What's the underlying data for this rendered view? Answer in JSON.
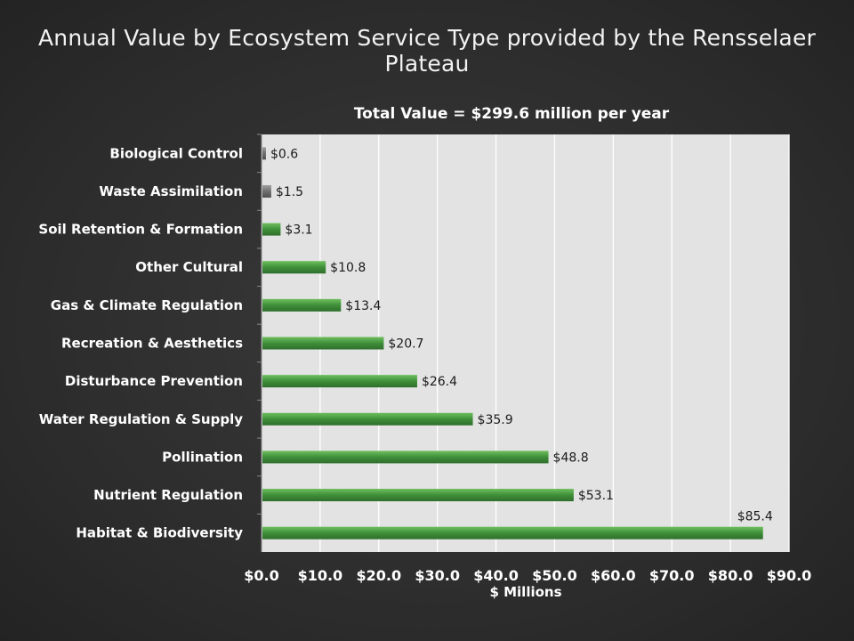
{
  "slide": {
    "title": "Annual Value by Ecosystem Service Type provided by the Rensselaer Plateau"
  },
  "chart_data": {
    "type": "bar",
    "orientation": "horizontal",
    "title": "Total Value = $299.6 million per year",
    "xlabel": "$ Millions",
    "ylabel": "",
    "xlim": [
      0,
      90
    ],
    "x_ticks": [
      "$0.0",
      "$10.0",
      "$20.0",
      "$30.0",
      "$40.0",
      "$50.0",
      "$60.0",
      "$70.0",
      "$80.0",
      "$90.0"
    ],
    "categories": [
      "Biological Control",
      "Waste Assimilation",
      "Soil Retention & Formation",
      "Other Cultural",
      "Gas & Climate Regulation",
      "Recreation & Aesthetics",
      "Disturbance Prevention",
      "Water Regulation & Supply",
      "Pollination",
      "Nutrient Regulation",
      "Habitat & Biodiversity"
    ],
    "values": [
      0.6,
      1.5,
      3.1,
      10.8,
      13.4,
      20.7,
      26.4,
      35.9,
      48.8,
      53.1,
      85.4
    ],
    "data_labels": [
      "$0.6",
      "$1.5",
      "$3.1",
      "$10.8",
      "$13.4",
      "$20.7",
      "$26.4",
      "$35.9",
      "$48.8",
      "$53.1",
      "$85.4"
    ],
    "bar_colors": [
      "#6f6f6f",
      "#6f6f6f",
      "#3f8f3a",
      "#3f8f3a",
      "#3f8f3a",
      "#3f8f3a",
      "#3f8f3a",
      "#3f8f3a",
      "#3f8f3a",
      "#3f8f3a",
      "#3f8f3a"
    ],
    "grid": true,
    "legend": "none",
    "plot_background": "#e3e3e3"
  }
}
